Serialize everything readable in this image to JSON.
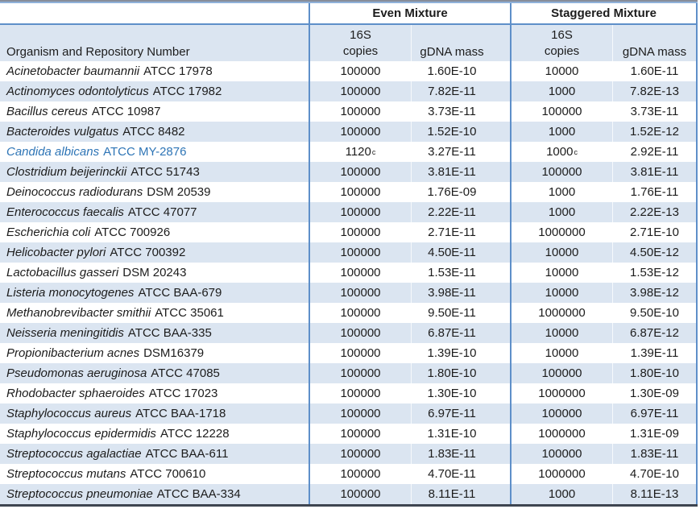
{
  "table": {
    "group_headers": [
      {
        "label": ""
      },
      {
        "label": "Even Mixture"
      },
      {
        "label": "Staggered Mixture"
      }
    ],
    "column_headers": {
      "organism": "Organism and Repository Number",
      "copies_line1": "16S",
      "copies_line2": "copies",
      "gdna": "gDNA mass"
    },
    "colors": {
      "row_alt": "#DBE5F1",
      "header_fill": "#DBE5F1",
      "border_blue": "#5E8FC9",
      "top_gray": "#878D99",
      "top_blue": "#8FB1DA",
      "bottom_dark": "#3E4550",
      "highlight_text": "#2E75B6",
      "text": "#1C1C1C"
    },
    "rows": [
      {
        "organism_italic": "Acinetobacter baumannii",
        "organism_regular": "ATCC 17978",
        "even_copies": "100000",
        "even_copies_sup": "",
        "even_gdna": "1.60E-10",
        "stag_copies": "10000",
        "stag_copies_sup": "",
        "stag_gdna": "1.60E-11",
        "highlight": false
      },
      {
        "organism_italic": "Actinomyces odontolyticus",
        "organism_regular": "ATCC 17982",
        "even_copies": "100000",
        "even_copies_sup": "",
        "even_gdna": "7.82E-11",
        "stag_copies": "1000",
        "stag_copies_sup": "",
        "stag_gdna": "7.82E-13",
        "highlight": false
      },
      {
        "organism_italic": "Bacillus cereus",
        "organism_regular": "ATCC 10987",
        "even_copies": "100000",
        "even_copies_sup": "",
        "even_gdna": "3.73E-11",
        "stag_copies": "100000",
        "stag_copies_sup": "",
        "stag_gdna": "3.73E-11",
        "highlight": false
      },
      {
        "organism_italic": "Bacteroides vulgatus",
        "organism_regular": "ATCC 8482",
        "even_copies": "100000",
        "even_copies_sup": "",
        "even_gdna": "1.52E-10",
        "stag_copies": "1000",
        "stag_copies_sup": "",
        "stag_gdna": "1.52E-12",
        "highlight": false
      },
      {
        "organism_italic": "Candida albicans",
        "organism_regular": "ATCC MY-2876",
        "even_copies": "1120",
        "even_copies_sup": "c",
        "even_gdna": "3.27E-11",
        "stag_copies": "1000",
        "stag_copies_sup": "c",
        "stag_gdna": "2.92E-11",
        "highlight": true
      },
      {
        "organism_italic": "Clostridium beijerinckii",
        "organism_regular": "ATCC 51743",
        "even_copies": "100000",
        "even_copies_sup": "",
        "even_gdna": "3.81E-11",
        "stag_copies": "100000",
        "stag_copies_sup": "",
        "stag_gdna": "3.81E-11",
        "highlight": false
      },
      {
        "organism_italic": "Deinococcus radiodurans",
        "organism_regular": "DSM 20539",
        "even_copies": "100000",
        "even_copies_sup": "",
        "even_gdna": "1.76E-09",
        "stag_copies": "1000",
        "stag_copies_sup": "",
        "stag_gdna": "1.76E-11",
        "highlight": false
      },
      {
        "organism_italic": "Enterococcus faecalis",
        "organism_regular": "ATCC 47077",
        "even_copies": "100000",
        "even_copies_sup": "",
        "even_gdna": "2.22E-11",
        "stag_copies": "1000",
        "stag_copies_sup": "",
        "stag_gdna": "2.22E-13",
        "highlight": false
      },
      {
        "organism_italic": "Escherichia coli",
        "organism_regular": "ATCC 700926",
        "even_copies": "100000",
        "even_copies_sup": "",
        "even_gdna": "2.71E-11",
        "stag_copies": "1000000",
        "stag_copies_sup": "",
        "stag_gdna": "2.71E-10",
        "highlight": false
      },
      {
        "organism_italic": "Helicobacter pylori",
        "organism_regular": "ATCC 700392",
        "even_copies": "100000",
        "even_copies_sup": "",
        "even_gdna": "4.50E-11",
        "stag_copies": "10000",
        "stag_copies_sup": "",
        "stag_gdna": "4.50E-12",
        "highlight": false
      },
      {
        "organism_italic": "Lactobacillus gasseri",
        "organism_regular": "DSM 20243",
        "even_copies": "100000",
        "even_copies_sup": "",
        "even_gdna": "1.53E-11",
        "stag_copies": "10000",
        "stag_copies_sup": "",
        "stag_gdna": "1.53E-12",
        "highlight": false
      },
      {
        "organism_italic": "Listeria monocytogenes",
        "organism_regular": "ATCC BAA-679",
        "even_copies": "100000",
        "even_copies_sup": "",
        "even_gdna": "3.98E-11",
        "stag_copies": "10000",
        "stag_copies_sup": "",
        "stag_gdna": "3.98E-12",
        "highlight": false
      },
      {
        "organism_italic": "Methanobrevibacter smithii",
        "organism_regular": "ATCC 35061",
        "even_copies": "100000",
        "even_copies_sup": "",
        "even_gdna": "9.50E-11",
        "stag_copies": "1000000",
        "stag_copies_sup": "",
        "stag_gdna": "9.50E-10",
        "highlight": false
      },
      {
        "organism_italic": "Neisseria meningitidis",
        "organism_regular": "ATCC BAA-335",
        "even_copies": "100000",
        "even_copies_sup": "",
        "even_gdna": "6.87E-11",
        "stag_copies": "10000",
        "stag_copies_sup": "",
        "stag_gdna": "6.87E-12",
        "highlight": false
      },
      {
        "organism_italic": "Propionibacterium acnes",
        "organism_regular": "DSM16379",
        "even_copies": "100000",
        "even_copies_sup": "",
        "even_gdna": "1.39E-10",
        "stag_copies": "10000",
        "stag_copies_sup": "",
        "stag_gdna": "1.39E-11",
        "highlight": false
      },
      {
        "organism_italic": "Pseudomonas aeruginosa",
        "organism_regular": "ATCC 47085",
        "even_copies": "100000",
        "even_copies_sup": "",
        "even_gdna": "1.80E-10",
        "stag_copies": "100000",
        "stag_copies_sup": "",
        "stag_gdna": "1.80E-10",
        "highlight": false
      },
      {
        "organism_italic": "Rhodobacter sphaeroides",
        "organism_regular": "ATCC 17023",
        "even_copies": "100000",
        "even_copies_sup": "",
        "even_gdna": "1.30E-10",
        "stag_copies": "1000000",
        "stag_copies_sup": "",
        "stag_gdna": "1.30E-09",
        "highlight": false
      },
      {
        "organism_italic": "Staphylococcus aureus",
        "organism_regular": "ATCC BAA-1718",
        "even_copies": "100000",
        "even_copies_sup": "",
        "even_gdna": "6.97E-11",
        "stag_copies": "100000",
        "stag_copies_sup": "",
        "stag_gdna": "6.97E-11",
        "highlight": false
      },
      {
        "organism_italic": "Staphylococcus epidermidis",
        "organism_regular": "ATCC 12228",
        "even_copies": "100000",
        "even_copies_sup": "",
        "even_gdna": "1.31E-10",
        "stag_copies": "1000000",
        "stag_copies_sup": "",
        "stag_gdna": "1.31E-09",
        "highlight": false
      },
      {
        "organism_italic": "Streptococcus agalactiae",
        "organism_regular": "ATCC BAA-611",
        "even_copies": "100000",
        "even_copies_sup": "",
        "even_gdna": "1.83E-11",
        "stag_copies": "100000",
        "stag_copies_sup": "",
        "stag_gdna": "1.83E-11",
        "highlight": false
      },
      {
        "organism_italic": "Streptococcus mutans",
        "organism_regular": "ATCC 700610",
        "even_copies": "100000",
        "even_copies_sup": "",
        "even_gdna": "4.70E-11",
        "stag_copies": "1000000",
        "stag_copies_sup": "",
        "stag_gdna": "4.70E-10",
        "highlight": false
      },
      {
        "organism_italic": "Streptococcus pneumoniae",
        "organism_regular": "ATCC BAA-334",
        "even_copies": "100000",
        "even_copies_sup": "",
        "even_gdna": "8.11E-11",
        "stag_copies": "1000",
        "stag_copies_sup": "",
        "stag_gdna": "8.11E-13",
        "highlight": false
      }
    ]
  }
}
